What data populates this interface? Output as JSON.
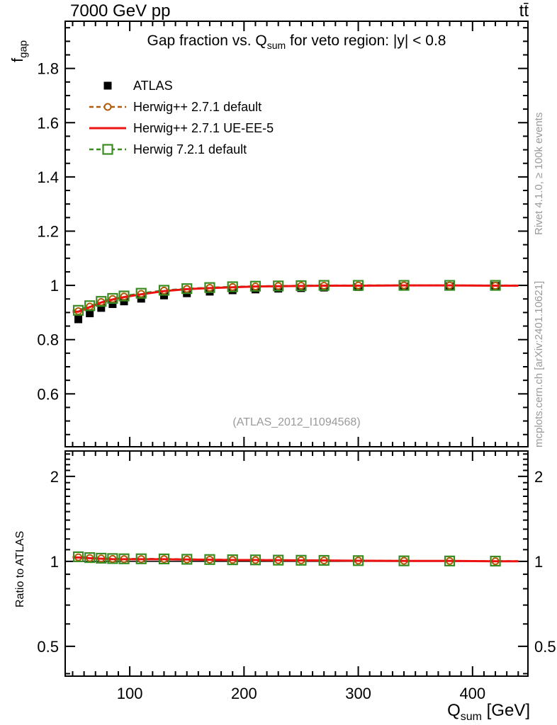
{
  "header": {
    "left": "7000 GeV pp",
    "right": "tt̄"
  },
  "side_notes": {
    "rivet": "Rivet 4.1.0, ≥ 100k events",
    "mcplots": "mcplots.cern.ch [arXiv:2401.10621]"
  },
  "colors": {
    "atlas": "#000000",
    "herwigpp_default": "#b15a09",
    "herwigpp_ueee5": "#ee1111",
    "herwig7_default": "#3a8c22",
    "frame": "#000000",
    "gray_text": "#9a9a9a"
  },
  "chart_data": {
    "type": "line",
    "title_pre": "Gap fraction vs. Q",
    "title_sub": "sum",
    "title_post": " for veto region: |y| < 0.8",
    "xlabel_pre": "Q",
    "xlabel_sub": "sum",
    "xlabel_post": " [GeV]",
    "xlim": [
      43.5,
      448.5
    ],
    "x_major_ticks": [
      100,
      200,
      300,
      400
    ],
    "x_tick_labels": [
      "100",
      "200",
      "300",
      "400"
    ],
    "x_minor_step": 10,
    "x": [
      55,
      65,
      75,
      85,
      95,
      110,
      130,
      150,
      170,
      190,
      210,
      230,
      250,
      270,
      300,
      340,
      380,
      420
    ],
    "main_panel": {
      "ylabel_pre": "f",
      "ylabel_sub": "gap",
      "yscale": "linear",
      "ylim": [
        0.405,
        1.974
      ],
      "y_major_ticks": [
        0.6,
        0.8,
        1.0,
        1.2,
        1.4,
        1.6,
        1.8
      ],
      "y_tick_labels": [
        "0.6",
        "0.8",
        "1",
        "1.2",
        "1.4",
        "1.6",
        "1.8"
      ],
      "y_minor_step": 0.05,
      "grid": false,
      "watermark": "(ATLAS_2012_I1094568)",
      "series": [
        {
          "name": "ATLAS",
          "style": "marker",
          "marker": "filled-square",
          "color": "#000000",
          "values": [
            0.875,
            0.897,
            0.917,
            0.931,
            0.941,
            0.951,
            0.963,
            0.971,
            0.977,
            0.982,
            0.985,
            0.988,
            0.99,
            0.992,
            0.994,
            0.996,
            0.997,
            0.998
          ]
        },
        {
          "name": "Herwig++ 2.7.1 default",
          "style": "line-marker",
          "marker": "open-circle",
          "linestyle": "dashed",
          "color": "#b15a09",
          "values": [
            0.905,
            0.922,
            0.939,
            0.95,
            0.959,
            0.969,
            0.981,
            0.987,
            0.991,
            0.994,
            0.996,
            0.998,
            0.999,
            0.999,
            1.0,
            1.0,
            1.0,
            0.999
          ]
        },
        {
          "name": "Herwig++ 2.7.1 UE-EE-5",
          "style": "line",
          "marker": "none",
          "linestyle": "solid",
          "color": "#ee1111",
          "values": [
            0.903,
            0.92,
            0.937,
            0.948,
            0.957,
            0.967,
            0.979,
            0.986,
            0.99,
            0.993,
            0.996,
            0.997,
            0.998,
            0.999,
            0.999,
            1.0,
            1.0,
            0.999
          ]
        },
        {
          "name": "Herwig 7.2.1 default",
          "style": "line-marker",
          "marker": "open-square",
          "linestyle": "dashed",
          "color": "#3a8c22",
          "values": [
            0.908,
            0.925,
            0.941,
            0.952,
            0.961,
            0.971,
            0.982,
            0.988,
            0.992,
            0.995,
            0.997,
            0.998,
            0.999,
            1.0,
            1.0,
            1.0,
            1.0,
            1.0
          ]
        }
      ]
    },
    "ratio_panel": {
      "ylabel": "Ratio to ATLAS",
      "yscale": "log",
      "ylim": [
        0.392,
        2.46
      ],
      "y_major_ticks": [
        0.5,
        1,
        2
      ],
      "y_tick_labels": [
        "0.5",
        "1",
        "2"
      ],
      "y_minor_ticks": [
        0.4,
        0.6,
        0.7,
        0.8,
        0.9,
        1.1,
        1.2,
        1.3,
        1.4,
        1.5,
        1.6,
        1.7,
        1.8,
        1.9,
        2.1,
        2.2,
        2.3,
        2.4
      ],
      "reference_line": 1.0,
      "series": [
        {
          "name": "Herwig++ 2.7.1 default",
          "style": "line-marker",
          "marker": "open-circle",
          "linestyle": "dashed",
          "color": "#b15a09",
          "values": [
            1.034,
            1.028,
            1.024,
            1.02,
            1.019,
            1.019,
            1.019,
            1.016,
            1.014,
            1.012,
            1.011,
            1.01,
            1.009,
            1.007,
            1.006,
            1.004,
            1.003,
            1.001
          ]
        },
        {
          "name": "Herwig++ 2.7.1 UE-EE-5",
          "style": "line",
          "marker": "none",
          "linestyle": "solid",
          "color": "#ee1111",
          "values": [
            1.032,
            1.026,
            1.022,
            1.018,
            1.017,
            1.017,
            1.017,
            1.015,
            1.013,
            1.011,
            1.011,
            1.009,
            1.008,
            1.007,
            1.005,
            1.004,
            1.003,
            1.001
          ]
        },
        {
          "name": "Herwig 7.2.1 default",
          "style": "line-marker",
          "marker": "open-square",
          "linestyle": "dashed",
          "color": "#3a8c22",
          "values": [
            1.038,
            1.031,
            1.026,
            1.023,
            1.021,
            1.021,
            1.02,
            1.017,
            1.015,
            1.013,
            1.012,
            1.01,
            1.009,
            1.008,
            1.006,
            1.004,
            1.003,
            1.002
          ]
        }
      ]
    },
    "legend_items": [
      {
        "label": "ATLAS",
        "marker": "filled-square",
        "linestyle": "none",
        "color": "#000000"
      },
      {
        "label": "Herwig++ 2.7.1 default",
        "marker": "open-circle",
        "linestyle": "dashed",
        "color": "#b15a09"
      },
      {
        "label": "Herwig++ 2.7.1 UE-EE-5",
        "marker": "none",
        "linestyle": "solid",
        "color": "#ee1111"
      },
      {
        "label": "Herwig 7.2.1 default",
        "marker": "open-square",
        "linestyle": "dashed",
        "color": "#3a8c22"
      }
    ]
  }
}
